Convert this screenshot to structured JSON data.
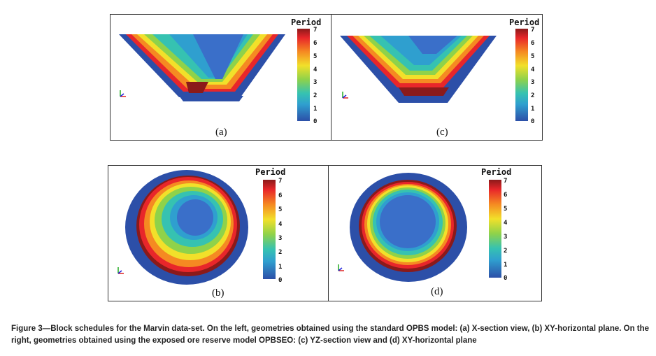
{
  "colors": {
    "p0": "#2c4fa8",
    "p1": "#3a6fc9",
    "p2": "#2f9fcf",
    "p3": "#36c2b1",
    "p4": "#8fd24a",
    "p5": "#f2e02a",
    "p6": "#f58a22",
    "p7": "#e8262a",
    "p8": "#8b1a1a"
  },
  "panels": [
    {
      "id": "a",
      "label": "(a)",
      "legend_title": "Period",
      "ticks": [
        "7",
        "6",
        "5",
        "4",
        "3",
        "2",
        "1",
        "0"
      ]
    },
    {
      "id": "c",
      "label": "(c)",
      "legend_title": "Period",
      "ticks": [
        "7",
        "6",
        "5",
        "4",
        "3",
        "2",
        "1",
        "0"
      ]
    },
    {
      "id": "b",
      "label": "(b)",
      "legend_title": "Period",
      "ticks": [
        "7",
        "6",
        "5",
        "4",
        "3",
        "2",
        "1",
        "0"
      ]
    },
    {
      "id": "d",
      "label": "(d)",
      "legend_title": "Period",
      "ticks": [
        "7",
        "6",
        "5",
        "4",
        "3",
        "2",
        "1",
        "0"
      ]
    }
  ],
  "caption": "Figure 3—Block schedules for the Marvin data-set. On the left, geometries obtained using the standard OPBS model: (a) X-section view, (b) XY-horizontal plane. On the right, geometries obtained using the exposed ore reserve model OPBSEO: (c) YZ-section view and (d) XY-horizontal plane"
}
